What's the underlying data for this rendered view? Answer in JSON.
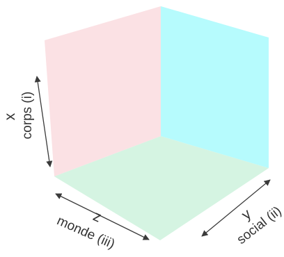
{
  "colors": {
    "left_wall": "#fbe1e4",
    "right_wall": "#b6fbfd",
    "floor": "#d5f4e2",
    "arrow": "#3a3a3a",
    "text": "#333333"
  },
  "axes": {
    "x": {
      "letter": "x",
      "label": "corps (i)"
    },
    "y": {
      "letter": "y",
      "label": "social (ii)"
    },
    "z": {
      "letter": "z",
      "label": "monde (iii)"
    }
  }
}
